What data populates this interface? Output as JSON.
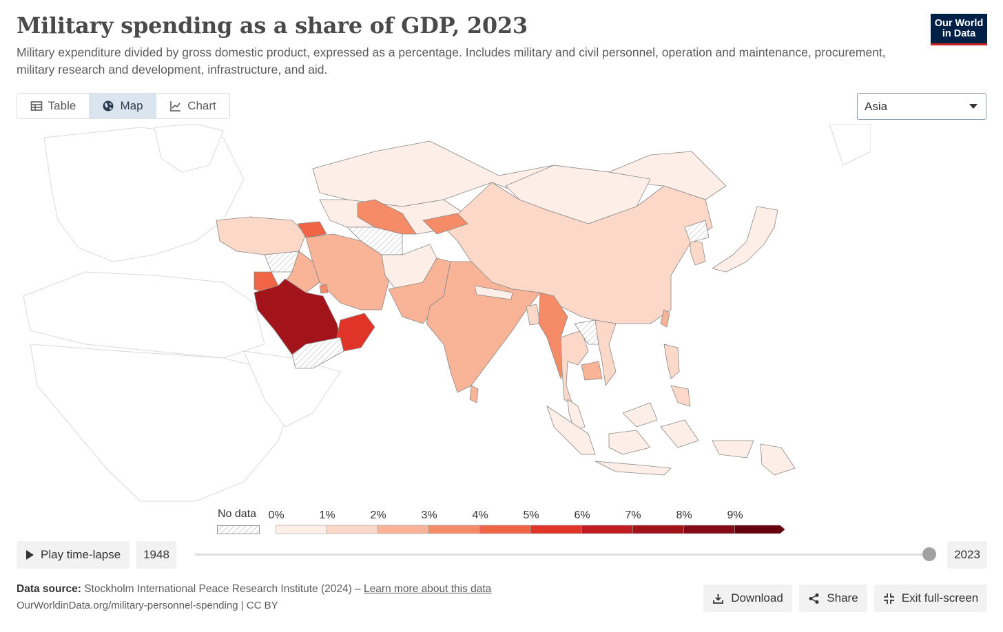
{
  "header": {
    "title": "Military spending as a share of GDP, 2023",
    "subtitle": "Military expenditure divided by gross domestic product, expressed as a percentage. Includes military and civil personnel, operation and maintenance, procurement, military research and development, infrastructure, and aid.",
    "logo_line1": "Our World",
    "logo_line2": "in Data",
    "logo_color": "#002147",
    "logo_accent": "#ce261e"
  },
  "tabs": [
    {
      "label": "Table",
      "icon": "table-icon",
      "active": false
    },
    {
      "label": "Map",
      "icon": "globe-icon",
      "active": true
    },
    {
      "label": "Chart",
      "icon": "line-chart-icon",
      "active": false
    }
  ],
  "region_select": {
    "value": "Asia"
  },
  "legend": {
    "no_data_label": "No data",
    "ticks": [
      "0%",
      "1%",
      "2%",
      "3%",
      "4%",
      "5%",
      "6%",
      "7%",
      "8%",
      "9%"
    ],
    "colors": [
      "#fdeee7",
      "#fcd8c8",
      "#f9b497",
      "#f68b67",
      "#f16445",
      "#e03428",
      "#c11c1f",
      "#a3131a",
      "#870b16",
      "#67000d"
    ]
  },
  "map_data": {
    "region": "Asia",
    "year": 2023,
    "unit": "% of GDP"
  },
  "timeline": {
    "play_label": "Play time-lapse",
    "start_year": "1948",
    "end_year": "2023",
    "position": 1.0
  },
  "footer": {
    "source_label": "Data source:",
    "source_text": "Stockholm International Peace Research Institute (2024) –",
    "source_link": "Learn more about this data",
    "url_text": "OurWorldinData.org/military-personnel-spending | CC BY",
    "download_label": "Download",
    "share_label": "Share",
    "fullscreen_label": "Exit full-screen"
  }
}
